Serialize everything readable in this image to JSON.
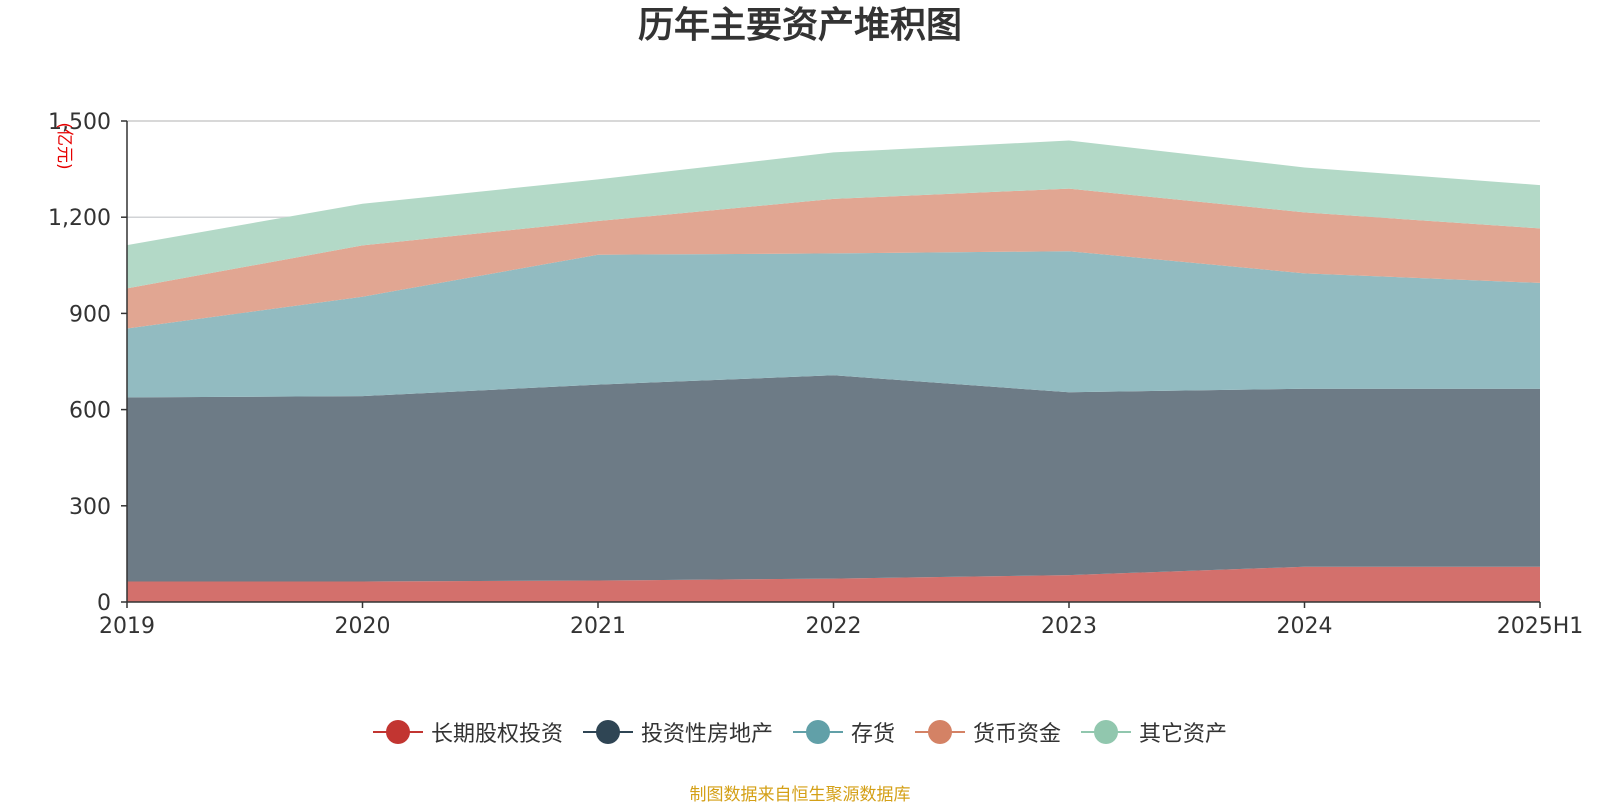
{
  "title": "历年主要资产堆积图",
  "source": "制图数据来自恒生聚源数据库",
  "chart_data": {
    "type": "area",
    "stacked": true,
    "title": "历年主要资产堆积图",
    "unit_label": "(亿元)",
    "categories": [
      "2019",
      "2020",
      "2021",
      "2022",
      "2023",
      "2024",
      "2025H1"
    ],
    "y_ticks": [
      0,
      300,
      600,
      900,
      1200,
      1500
    ],
    "y_tick_labels": [
      "0",
      "300",
      "600",
      "900",
      "1,200",
      "1,500"
    ],
    "ylim": [
      0,
      1500
    ],
    "legend_position": "bottom-center",
    "series": [
      {
        "name": "长期股权投资",
        "color": "#c23531",
        "fill": "#d3706c",
        "values": [
          64,
          64,
          67,
          73,
          84,
          110,
          110
        ]
      },
      {
        "name": "投资性房地产",
        "color": "#2f4554",
        "fill": "#6d7b86",
        "values": [
          574,
          578,
          611,
          634,
          570,
          555,
          555
        ]
      },
      {
        "name": "存货",
        "color": "#61a0a8",
        "fill": "#92bbc1",
        "values": [
          215,
          310,
          405,
          380,
          440,
          360,
          330
        ]
      },
      {
        "name": "货币资金",
        "color": "#d48265",
        "fill": "#e1a692",
        "values": [
          125,
          160,
          105,
          170,
          195,
          190,
          170
        ]
      },
      {
        "name": "其它资产",
        "color": "#91c7ae",
        "fill": "#b3d9c7",
        "values": [
          135,
          130,
          130,
          145,
          150,
          140,
          135
        ]
      }
    ]
  }
}
